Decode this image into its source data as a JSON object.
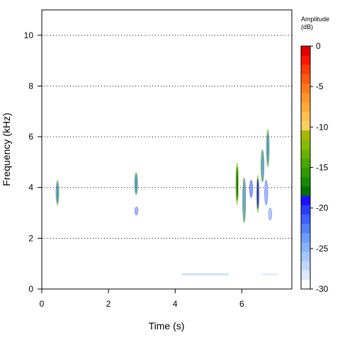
{
  "chart_data": {
    "type": "heatmap",
    "title": "",
    "xlabel": "Time (s)",
    "ylabel": "Frequency (kHz)",
    "xlim": [
      0,
      7.5
    ],
    "ylim": [
      0,
      11
    ],
    "x_ticks": [
      0,
      2,
      4,
      6
    ],
    "y_ticks": [
      0,
      2,
      4,
      6,
      8,
      10
    ],
    "horizontal_gridlines": [
      2,
      4,
      6,
      8,
      10
    ],
    "grid_style": "dotted",
    "legend_placement": "right",
    "colorbar": {
      "title_line1": "Amplitude",
      "title_line2": "(dB)",
      "range": [
        -30,
        0
      ],
      "ticks": [
        0,
        -5,
        -10,
        -15,
        -20,
        -25,
        -30
      ],
      "colors_low_to_high": [
        "#ffffff",
        "#dce9ff",
        "#c0d8ff",
        "#a4c6ff",
        "#88b2ff",
        "#6c9dff",
        "#5080ff",
        "#3a60ff",
        "#2a3dff",
        "#1a10ff",
        "#007000",
        "#188a00",
        "#2f9a00",
        "#4aa800",
        "#68b400",
        "#87bc00",
        "#a8b800",
        "#f8d060",
        "#ffc050",
        "#ffaa3a",
        "#ff9428",
        "#ff7a1a",
        "#ff5a10",
        "#ff3a08",
        "#ff1500",
        "#e00000"
      ]
    },
    "signal_blobs": [
      {
        "t": 0.47,
        "f_low": 3.3,
        "f_high": 4.3,
        "db": -22
      },
      {
        "t": 2.83,
        "f_low": 3.7,
        "f_high": 4.6,
        "db": -23
      },
      {
        "t": 2.84,
        "f_low": 2.9,
        "f_high": 3.25,
        "db": -26
      },
      {
        "t": 5.86,
        "f_low": 3.3,
        "f_high": 5.0,
        "db": -18
      },
      {
        "t": 6.07,
        "f_low": 2.6,
        "f_high": 4.4,
        "db": -24
      },
      {
        "t": 6.28,
        "f_low": 3.6,
        "f_high": 4.3,
        "db": -25
      },
      {
        "t": 6.48,
        "f_low": 3.0,
        "f_high": 4.5,
        "db": -19
      },
      {
        "t": 6.62,
        "f_low": 4.2,
        "f_high": 5.5,
        "db": -24
      },
      {
        "t": 6.78,
        "f_low": 4.8,
        "f_high": 6.3,
        "db": -22
      },
      {
        "t": 6.73,
        "f_low": 3.3,
        "f_high": 4.3,
        "db": -26
      },
      {
        "t": 6.85,
        "f_low": 2.7,
        "f_high": 3.2,
        "db": -27
      }
    ],
    "low_band_segments": [
      {
        "t_start": 4.2,
        "t_end": 5.6,
        "f": 0.58,
        "db": -27
      },
      {
        "t_start": 6.6,
        "t_end": 7.1,
        "f": 0.58,
        "db": -28
      },
      {
        "t_start": 0.2,
        "t_end": 3.0,
        "f": 0.15,
        "db": -29
      }
    ]
  }
}
